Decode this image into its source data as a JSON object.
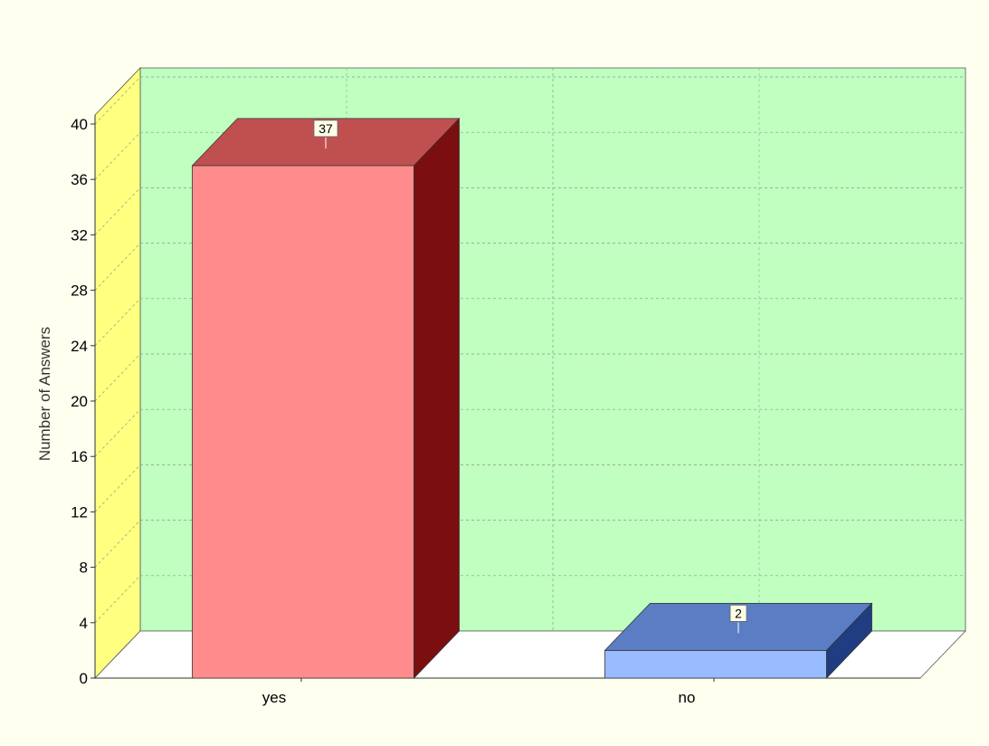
{
  "chart_data": {
    "type": "bar",
    "categories": [
      "yes",
      "no"
    ],
    "values": [
      37,
      2
    ],
    "title": "",
    "xlabel": "",
    "ylabel": "Number of Answers",
    "ylim": [
      0,
      40
    ],
    "yticks": [
      0,
      4,
      8,
      12,
      16,
      20,
      24,
      28,
      32,
      36,
      40
    ],
    "grid": true,
    "legend": "none",
    "colors": {
      "background": "#fffff0",
      "back_wall": "#c0ffc0",
      "side_wall": "#ffff80",
      "floor": "#ffffff",
      "gridline": "#8a9a8a",
      "bars": [
        {
          "front": "#ff8c8c",
          "top": "#c05050",
          "side": "#7b0f0f"
        },
        {
          "front": "#99bbff",
          "top": "#5b7dc4",
          "side": "#1f3d80"
        }
      ],
      "data_label_bg": "#ffffe8"
    }
  }
}
